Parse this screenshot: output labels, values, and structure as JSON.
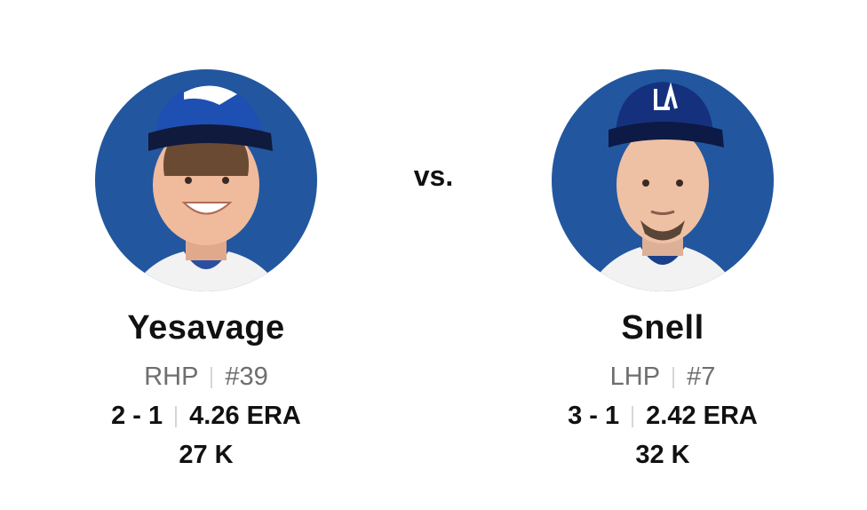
{
  "vs": "vs.",
  "pitchers": [
    {
      "name": "Yesavage",
      "throws": "RHP",
      "number": "#39",
      "record": "2 - 1",
      "era": "4.26 ERA",
      "strikeouts": "27 K"
    },
    {
      "name": "Snell",
      "throws": "LHP",
      "number": "#7",
      "record": "3 - 1",
      "era": "2.42 ERA",
      "strikeouts": "32 K"
    }
  ]
}
